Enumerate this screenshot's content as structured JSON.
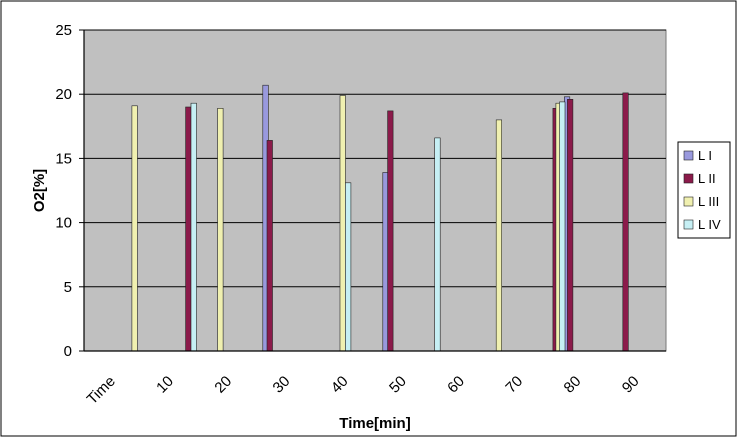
{
  "chart_data": {
    "type": "bar",
    "xlabel": "Time[min]",
    "ylabel": "O2[%]",
    "ylim": [
      0,
      25
    ],
    "yticks": [
      "0",
      "5",
      "10",
      "15",
      "20",
      "25"
    ],
    "categories": [
      "Time",
      "10",
      "20",
      "30",
      "40",
      "50",
      "60",
      "70",
      "80",
      "90"
    ],
    "grid": true,
    "legend_position": "right",
    "series": [
      {
        "name": "L I",
        "color": "#9999dd",
        "points": [
          {
            "x": 30.1,
            "y": 20.7
          },
          {
            "x": 50.0,
            "y": 13.9
          },
          {
            "x": 80.1,
            "y": 19.8
          }
        ]
      },
      {
        "name": "L II",
        "color": "#8b1a4a",
        "points": [
          {
            "x": 17.3,
            "y": 19.0
          },
          {
            "x": 30.8,
            "y": 16.4
          },
          {
            "x": 50.8,
            "y": 18.7
          },
          {
            "x": 78.2,
            "y": 18.9
          },
          {
            "x": 80.6,
            "y": 19.6
          },
          {
            "x": 89.8,
            "y": 20.1
          }
        ]
      },
      {
        "name": "L III",
        "color": "#f0f0b0",
        "points": [
          {
            "x": 8.4,
            "y": 19.1
          },
          {
            "x": 22.6,
            "y": 18.9
          },
          {
            "x": 42.9,
            "y": 19.9
          },
          {
            "x": 68.8,
            "y": 18.0
          },
          {
            "x": 78.7,
            "y": 19.3
          }
        ]
      },
      {
        "name": "L IV",
        "color": "#c6eff4",
        "points": [
          {
            "x": 18.2,
            "y": 19.3
          },
          {
            "x": 43.8,
            "y": 13.1
          },
          {
            "x": 58.6,
            "y": 16.6
          },
          {
            "x": 79.3,
            "y": 19.4
          }
        ]
      }
    ]
  }
}
